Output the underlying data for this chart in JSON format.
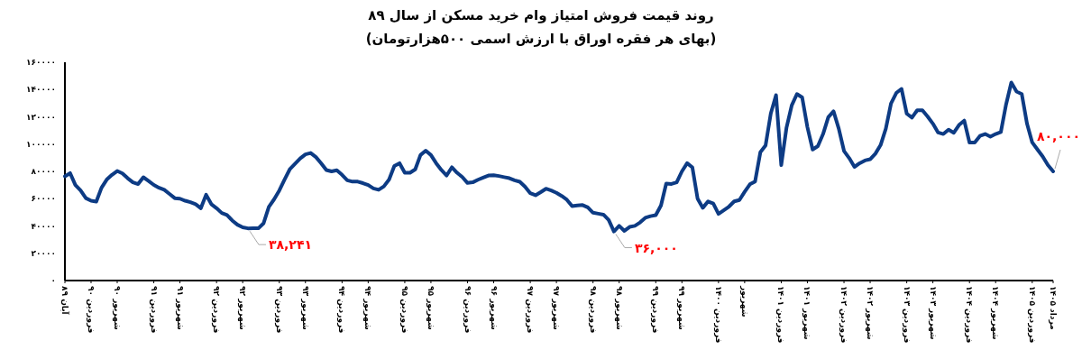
{
  "chart_data": {
    "type": "line",
    "title": "روند قیمت فروش امتیاز وام خرید مسکن از سال ۸۹",
    "subtitle": "(بهای هر فقره اوراق با ارزش اسمی ۵۰۰هزارتومان)",
    "ylim": [
      0,
      160000
    ],
    "grid": false,
    "marker": "none",
    "line_style": "solid",
    "yticks": [
      {
        "value": 0,
        "label": "۰"
      },
      {
        "value": 20000,
        "label": "۲۰۰۰۰"
      },
      {
        "value": 40000,
        "label": "۴۰۰۰۰"
      },
      {
        "value": 60000,
        "label": "۶۰۰۰۰"
      },
      {
        "value": 80000,
        "label": "۸۰۰۰۰"
      },
      {
        "value": 100000,
        "label": "۱۰۰۰۰۰"
      },
      {
        "value": 120000,
        "label": "۱۲۰۰۰۰"
      },
      {
        "value": 140000,
        "label": "۱۴۰۰۰۰"
      },
      {
        "value": 160000,
        "label": "۱۶۰۰۰۰"
      }
    ],
    "categories": [
      "آبان ۸۹",
      null,
      null,
      null,
      null,
      "فروردین ۹۰",
      null,
      null,
      null,
      null,
      "شهریور ۹۰",
      null,
      null,
      null,
      null,
      null,
      null,
      "فروردین ۹۱",
      null,
      null,
      null,
      null,
      "شهریور ۹۱",
      null,
      null,
      null,
      null,
      null,
      null,
      "فروردین ۹۲",
      null,
      null,
      null,
      null,
      "شهریور ۹۲",
      null,
      null,
      null,
      null,
      null,
      null,
      "فروردین ۹۳",
      null,
      null,
      null,
      null,
      "شهریور ۹۳",
      null,
      null,
      null,
      null,
      null,
      null,
      "فروردین ۹۴",
      null,
      null,
      null,
      null,
      "شهریور ۹۴",
      null,
      null,
      null,
      null,
      null,
      null,
      "فروردین ۹۵",
      null,
      null,
      null,
      null,
      "شهریور ۹۵",
      null,
      null,
      null,
      null,
      null,
      null,
      "فروردین ۹۶",
      null,
      null,
      null,
      null,
      "شهریور ۹۶",
      null,
      null,
      null,
      null,
      null,
      null,
      "فروردین ۹۷",
      null,
      null,
      null,
      null,
      "شهریور ۹۷",
      null,
      null,
      null,
      null,
      null,
      null,
      "فروردین ۹۸",
      null,
      null,
      null,
      null,
      "شهریور ۹۸",
      null,
      null,
      null,
      null,
      null,
      null,
      "فروردین ۹۹",
      null,
      null,
      null,
      null,
      "شهریور ۹۹",
      null,
      null,
      null,
      null,
      null,
      null,
      "فروردین ۱۴۰۰",
      null,
      null,
      null,
      null,
      "شهریور",
      null,
      null,
      null,
      null,
      null,
      null,
      "فروردین ۱۴۰۱",
      null,
      null,
      null,
      null,
      "شهریور ۱۴۰۱",
      null,
      null,
      null,
      null,
      null,
      null,
      "فروردین ۱۴۰۲",
      null,
      null,
      null,
      null,
      "شهریور ۱۴۰۲",
      null,
      null,
      null,
      null,
      null,
      null,
      "فروردین ۱۴۰۳",
      null,
      null,
      null,
      null,
      "شهریور ۱۴۰۳",
      null,
      null,
      null,
      null,
      null,
      null,
      "فروردین ۱۴۰۴",
      null,
      null,
      null,
      null,
      "شهریور ۱۴۰۴",
      null,
      null,
      null,
      null,
      null,
      null,
      "فروردین ۱۴۰۵",
      null,
      null,
      null,
      "مرداد ۱۴۰۵"
    ],
    "series": [
      {
        "color": "#0d3b84",
        "values": [
          76400,
          78700,
          70000,
          66000,
          60400,
          58500,
          57900,
          68000,
          74000,
          77500,
          80300,
          78500,
          75000,
          72000,
          70700,
          75700,
          73000,
          70100,
          68000,
          66500,
          63500,
          60400,
          60000,
          58500,
          57400,
          56000,
          53000,
          62900,
          56000,
          53000,
          49500,
          48000,
          44000,
          40900,
          39000,
          38241,
          38300,
          38300,
          42000,
          54000,
          59500,
          66000,
          74000,
          81500,
          85500,
          89500,
          92500,
          93500,
          90500,
          86000,
          81000,
          80000,
          80800,
          77500,
          73500,
          72500,
          72500,
          71400,
          70000,
          67500,
          66500,
          69000,
          74000,
          84000,
          86000,
          79000,
          79000,
          81500,
          92000,
          95200,
          92000,
          86000,
          81000,
          77000,
          83000,
          79000,
          75900,
          71500,
          72000,
          73900,
          75500,
          77000,
          77200,
          76600,
          75800,
          75000,
          73500,
          72400,
          68800,
          64000,
          62500,
          64800,
          67300,
          66000,
          64300,
          62000,
          59200,
          54500,
          55000,
          55300,
          53600,
          49700,
          49000,
          48300,
          44400,
          36000,
          40100,
          36400,
          39300,
          40100,
          42600,
          46000,
          47200,
          47900,
          55000,
          71100,
          70800,
          72000,
          80000,
          86000,
          83000,
          60000,
          53300,
          58000,
          56500,
          48900,
          51500,
          54200,
          58000,
          59000,
          65000,
          70500,
          72600,
          94000,
          99000,
          122500,
          135900,
          84600,
          112000,
          128300,
          136700,
          134200,
          112500,
          96000,
          98500,
          107400,
          119700,
          124000,
          111300,
          95000,
          89700,
          83300,
          86000,
          88000,
          88900,
          93000,
          99300,
          111300,
          129900,
          137500,
          140500,
          122300,
          119400,
          124800,
          124800,
          120200,
          115000,
          108500,
          107400,
          110600,
          108300,
          114000,
          117200,
          101200,
          101200,
          106000,
          107400,
          105500,
          107400,
          108800,
          129100,
          145100,
          138500,
          136700,
          115000,
          101200,
          96000,
          90900,
          84600,
          80000
        ]
      }
    ],
    "value_labels": [
      null,
      null,
      null,
      null,
      null,
      null,
      null,
      null,
      null,
      null,
      null,
      null,
      null,
      null,
      null,
      null,
      null,
      null,
      null,
      null,
      null,
      null,
      null,
      null,
      null,
      null,
      null,
      null,
      null,
      null,
      null,
      null,
      null,
      null,
      null,
      "۳۸,۲۴۱",
      null,
      null,
      null,
      null,
      null,
      null,
      null,
      null,
      null,
      null,
      null,
      null,
      null,
      null,
      null,
      null,
      null,
      null,
      null,
      null,
      null,
      null,
      null,
      null,
      null,
      null,
      null,
      null,
      null,
      null,
      null,
      null,
      null,
      null,
      null,
      null,
      null,
      null,
      null,
      null,
      null,
      null,
      null,
      null,
      null,
      null,
      null,
      null,
      null,
      null,
      null,
      null,
      null,
      null,
      null,
      null,
      null,
      null,
      null,
      null,
      null,
      null,
      null,
      null,
      null,
      null,
      null,
      null,
      null,
      "۳۶,۰۰۰",
      null,
      null,
      null,
      null,
      null,
      null,
      null,
      null,
      null,
      null,
      null,
      null,
      null,
      null,
      null,
      null,
      null,
      null,
      null,
      null,
      null,
      null,
      null,
      null,
      null,
      null,
      null,
      null,
      null,
      null,
      null,
      null,
      null,
      null,
      null,
      null,
      null,
      null,
      null,
      null,
      null,
      null,
      null,
      null,
      null,
      null,
      null,
      null,
      null,
      null,
      null,
      null,
      null,
      null,
      null,
      null,
      null,
      null,
      null,
      null,
      null,
      null,
      null,
      null,
      null,
      null,
      null,
      null,
      null,
      null,
      null,
      null,
      null,
      null,
      null,
      null,
      null,
      null,
      null,
      null,
      null,
      null,
      null,
      "۸۰,۰۰۰"
    ]
  }
}
